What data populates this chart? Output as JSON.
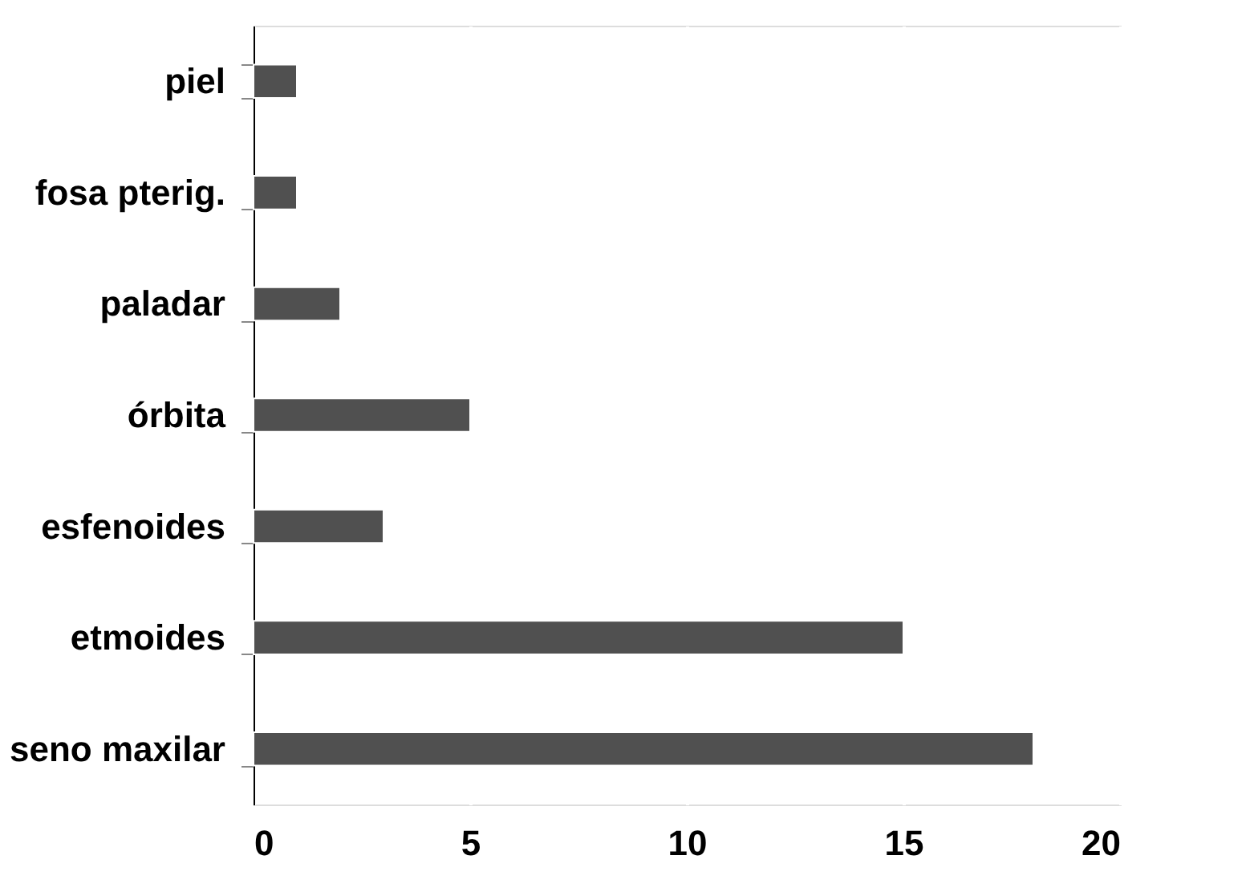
{
  "chart_data": {
    "type": "bar",
    "orientation": "horizontal",
    "categories": [
      "piel",
      "fosa pterig.",
      "paladar",
      "órbita",
      "esfenoides",
      "etmoides",
      "seno maxilar"
    ],
    "values": [
      1,
      1,
      2,
      5,
      3,
      15,
      18
    ],
    "color": "#505050",
    "xlim": [
      0,
      20
    ],
    "xticks": [
      0,
      5,
      10,
      15,
      20
    ],
    "grid": "x"
  }
}
